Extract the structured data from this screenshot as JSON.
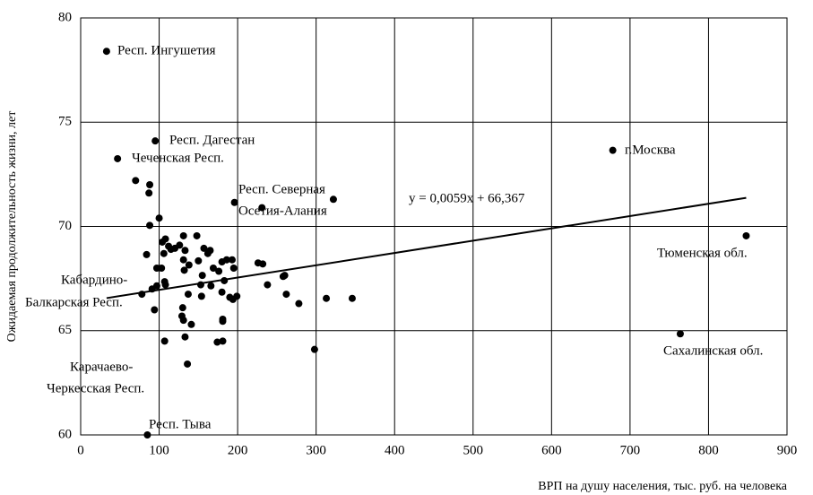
{
  "chart_data": {
    "type": "scatter",
    "xlabel": "ВРП на душу населения, тыс. руб. на человека",
    "ylabel": "Ожидаемая продолжительность жизни, лет",
    "xlim": [
      0,
      900
    ],
    "xticks": [
      0,
      100,
      200,
      300,
      400,
      500,
      600,
      700,
      800,
      900
    ],
    "ylim": [
      60,
      80
    ],
    "yticks": [
      60,
      65,
      70,
      75,
      80
    ],
    "grid": true,
    "color": "#000000",
    "x": [
      33,
      47,
      95,
      70,
      88,
      87,
      196,
      231,
      322,
      100,
      88,
      108,
      104,
      112,
      126,
      131,
      148,
      115,
      120,
      133,
      157,
      162,
      165,
      106,
      138,
      150,
      131,
      97,
      103,
      84,
      132,
      155,
      169,
      180,
      186,
      193,
      195,
      226,
      232,
      176,
      183,
      166,
      153,
      107,
      108,
      97,
      91,
      78,
      137,
      154,
      190,
      199,
      180,
      238,
      258,
      260,
      262,
      278,
      313,
      346,
      130,
      129,
      131,
      181,
      181,
      94,
      141,
      107,
      133,
      174,
      181,
      136,
      298,
      194,
      85,
      678,
      848,
      764
    ],
    "values": [
      78.4,
      73.25,
      74.1,
      72.2,
      72.0,
      71.6,
      71.15,
      70.9,
      71.3,
      70.4,
      70.05,
      69.4,
      69.25,
      69.05,
      69.1,
      69.55,
      69.55,
      68.9,
      68.95,
      68.85,
      68.95,
      68.7,
      68.85,
      68.7,
      68.15,
      68.35,
      68.4,
      68.0,
      68.0,
      68.65,
      67.9,
      67.65,
      68.0,
      68.3,
      68.4,
      68.4,
      68.0,
      68.25,
      68.2,
      67.85,
      67.4,
      67.15,
      67.2,
      67.35,
      67.2,
      67.15,
      67.0,
      66.75,
      66.75,
      66.65,
      66.6,
      66.65,
      66.85,
      67.2,
      67.6,
      67.65,
      66.75,
      66.3,
      66.55,
      66.55,
      66.1,
      65.7,
      65.5,
      65.55,
      65.45,
      66.0,
      65.3,
      64.5,
      64.7,
      64.45,
      64.5,
      63.4,
      64.1,
      66.5,
      60.0,
      73.65,
      69.55,
      64.85
    ],
    "trendline": {
      "label": "y = 0,0059x + 66,367",
      "slope": 0.0059,
      "intercept": 66.367
    },
    "annotations": [
      {
        "text": [
          "Респ. Ингушетия"
        ]
      },
      {
        "text": [
          "Респ. Дагестан"
        ]
      },
      {
        "text": [
          "Чеченская Респ."
        ]
      },
      {
        "text": [
          "Респ. Северная",
          "Осетия-Алания"
        ]
      },
      {
        "text": [
          "г.Москва"
        ]
      },
      {
        "text": [
          "Тюменская обл."
        ]
      },
      {
        "text": [
          "Кабардино-",
          "Балкарская Респ."
        ]
      },
      {
        "text": [
          "Сахалинская обл."
        ]
      },
      {
        "text": [
          "Карачаево-",
          "Черкесская Респ."
        ]
      },
      {
        "text": [
          "Респ. Тыва"
        ]
      }
    ]
  }
}
